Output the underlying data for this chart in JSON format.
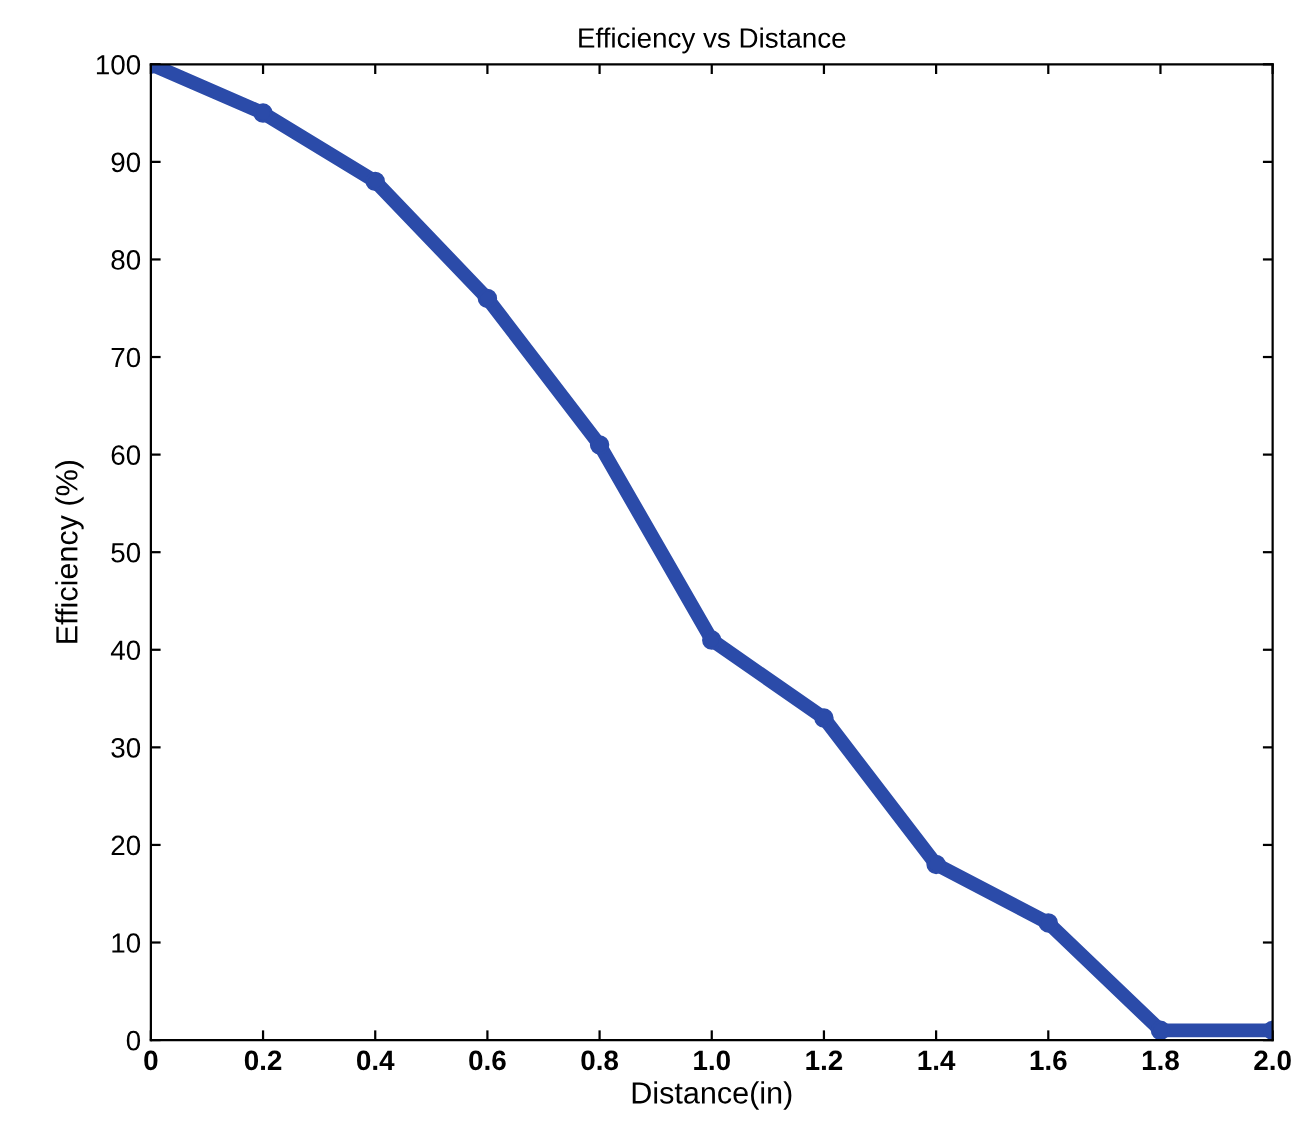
{
  "chart_data": {
    "type": "line",
    "title": "Efficiency vs Distance",
    "xlabel": "Distance(in)",
    "ylabel": "Efficiency (%)",
    "x": [
      0,
      0.2,
      0.4,
      0.6,
      0.8,
      1.0,
      1.2,
      1.4,
      1.6,
      1.8,
      2.0
    ],
    "series": [
      {
        "color": "#2b4ba9",
        "values": [
          100,
          95,
          88,
          76,
          61,
          41,
          33,
          18,
          12,
          1,
          1
        ]
      }
    ],
    "xlim": [
      0,
      2.0
    ],
    "ylim": [
      0,
      100
    ],
    "xticks": [
      0,
      0.2,
      0.4,
      0.6,
      0.8,
      {
        "value": 1.0,
        "label": "1.0"
      },
      1.2,
      1.4,
      1.6,
      1.8,
      {
        "value": 2.0,
        "label": "2.0"
      }
    ],
    "yticks": [
      0,
      10,
      20,
      30,
      40,
      50,
      60,
      70,
      80,
      90,
      100
    ],
    "grid": false,
    "marker": "circle",
    "line_style": "solid"
  }
}
